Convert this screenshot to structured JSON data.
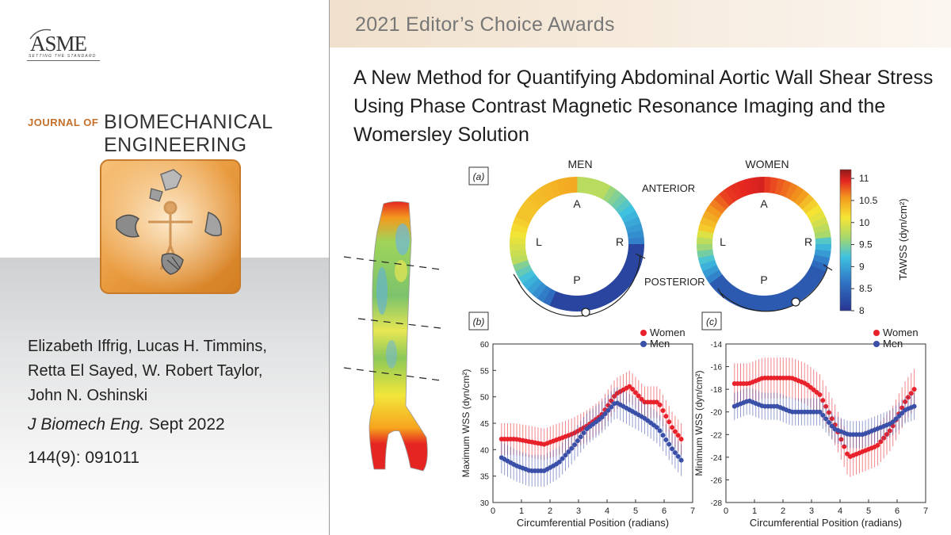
{
  "banner": {
    "text": "2021 Editor’s Choice Awards"
  },
  "publisher": {
    "logo_text": "ASME",
    "tagline": "SETTING THE STANDARD"
  },
  "journal": {
    "prefix": "JOURNAL OF",
    "name_line1": "BIOMECHANICAL",
    "name_line2": "ENGINEERING"
  },
  "paper": {
    "title": "A New Method for Quantifying Abdominal Aortic Wall Shear Stress Using Phase Contrast Magnetic Resonance Imaging and the Womersley Solution",
    "authors_line1": "Elizabeth Iffrig, Lucas H. Timmins,",
    "authors_line2": "Retta El Sayed, W. Robert Taylor,",
    "authors_line3": "John N. Oshinski",
    "journal_abbrev": "J Biomech Eng.",
    "date": "Sept 2022",
    "volume": "144(9): 091011"
  },
  "panel_a": {
    "label": "(a)",
    "men_title": "MEN",
    "women_title": "WOMEN",
    "anterior": "ANTERIOR",
    "posterior": "POSTERIOR",
    "dir_a": "A",
    "dir_p": "P",
    "dir_l": "L",
    "dir_r": "R",
    "colorbar_label": "TAWSS (dyn/cm²)",
    "colorbar_ticks": [
      "11",
      "10.5",
      "10",
      "9.5",
      "9",
      "8.5",
      "8"
    ],
    "colorbar_range": [
      8,
      11.2
    ],
    "colors": {
      "low": "#283593",
      "mid": "#f5e534",
      "high": "#b71c1c"
    }
  },
  "chart_data": [
    {
      "type": "scatter",
      "panel_label": "(b)",
      "xlabel": "Circumferential Position (radians)",
      "ylabel": "Maximum WSS (dyn/cm²)",
      "xlim": [
        0,
        7
      ],
      "ylim": [
        30,
        60
      ],
      "xticks": [
        "0",
        "1",
        "2",
        "3",
        "4",
        "5",
        "6",
        "7"
      ],
      "yticks": [
        "30",
        "35",
        "40",
        "45",
        "50",
        "55",
        "60"
      ],
      "legend_position": "top-right",
      "x": [
        0.3,
        0.8,
        1.3,
        1.8,
        2.3,
        2.8,
        3.3,
        3.8,
        4.3,
        4.8,
        5.3,
        5.8,
        6.3,
        6.6
      ],
      "series": [
        {
          "name": "Women",
          "color": "#e8212a",
          "errorbar": 3,
          "values": [
            42,
            42,
            41.5,
            41,
            42,
            43,
            44.5,
            46.5,
            50.5,
            52,
            49,
            49,
            44,
            42
          ]
        },
        {
          "name": "Men",
          "color": "#3a4fa8",
          "errorbar": 3,
          "values": [
            38.5,
            37,
            36,
            36,
            37.5,
            40.5,
            44,
            46,
            49,
            47.5,
            46,
            44,
            40,
            38
          ]
        }
      ]
    },
    {
      "type": "scatter",
      "panel_label": "(c)",
      "xlabel": "Circumferential Position (radians)",
      "ylabel": "Minimum WSS (dyn/cm²)",
      "xlim": [
        0,
        7
      ],
      "ylim": [
        -28,
        -14
      ],
      "xticks": [
        "0",
        "1",
        "2",
        "3",
        "4",
        "5",
        "6",
        "7"
      ],
      "yticks": [
        "-28",
        "-26",
        "-24",
        "-22",
        "-20",
        "-18",
        "-16",
        "-14"
      ],
      "legend_position": "top-right",
      "x": [
        0.3,
        0.8,
        1.3,
        1.8,
        2.3,
        2.8,
        3.3,
        3.8,
        4.3,
        4.8,
        5.3,
        5.8,
        6.3,
        6.6
      ],
      "series": [
        {
          "name": "Women",
          "color": "#e8212a",
          "errorbar": 1.8,
          "values": [
            -17.5,
            -17.5,
            -17,
            -17,
            -17,
            -17.5,
            -18.5,
            -21,
            -24,
            -23.5,
            -23,
            -21.5,
            -19,
            -18
          ]
        },
        {
          "name": "Men",
          "color": "#3a4fa8",
          "errorbar": 1.2,
          "values": [
            -19.5,
            -19,
            -19.5,
            -19.5,
            -20,
            -20,
            -20,
            -21.5,
            -22,
            -22,
            -21.5,
            -21,
            -19.8,
            -19.5
          ]
        }
      ]
    }
  ]
}
